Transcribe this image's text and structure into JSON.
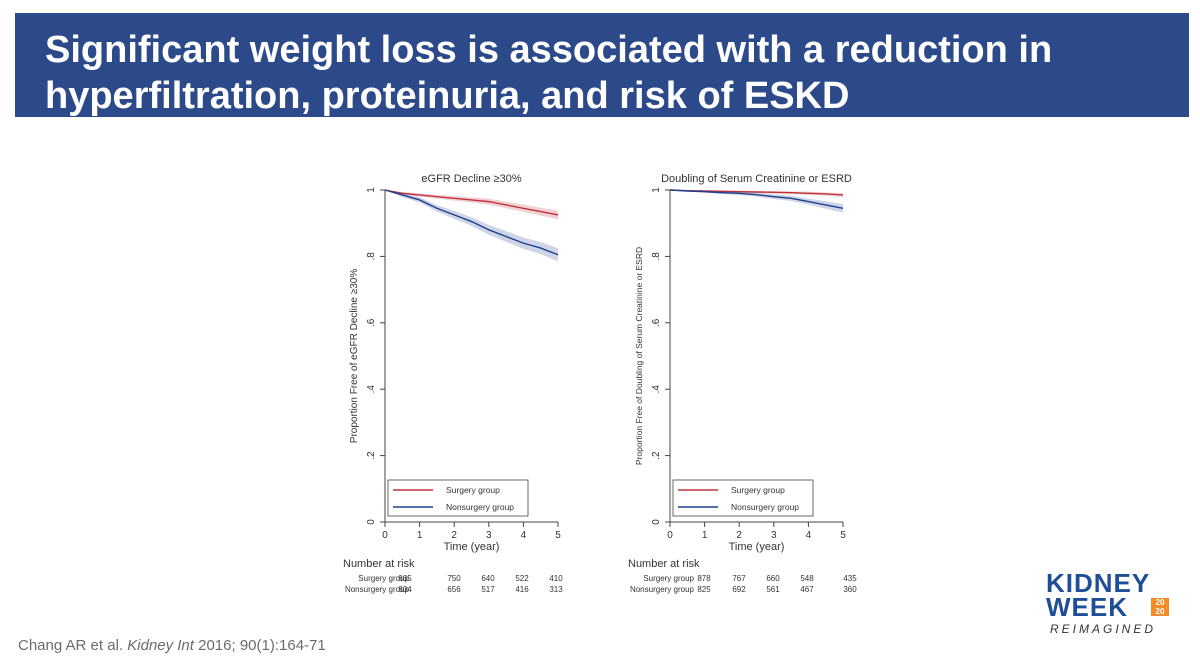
{
  "slide": {
    "title": "Significant weight loss is associated with a reduction in hyperfiltration, proteinuria, and risk of ESKD",
    "citation_authors": "Chang AR et al. ",
    "citation_journal": "Kidney Int",
    "citation_details": " 2016; 90(1):164-71",
    "logo": {
      "line1": "KIDNEY",
      "line2": "WEEK",
      "year_top": "20",
      "year_bottom": "20",
      "line3": "REIMAGINED"
    },
    "colors": {
      "title_bar": "#2c4a8a",
      "surgery": "#c0323c",
      "nonsurgery": "#1f3f8f"
    }
  },
  "chart_data": [
    {
      "type": "line",
      "title": "eGFR Decline ≥30%",
      "xlabel": "Time (year)",
      "ylabel": "Proportion Free of eGFR Decline ≥30%",
      "xlim": [
        0,
        5
      ],
      "ylim": [
        0,
        1
      ],
      "x_ticks": [
        "0",
        "1",
        "2",
        "3",
        "4",
        "5"
      ],
      "y_ticks": [
        "0",
        ".2",
        ".4",
        ".6",
        ".8",
        "1"
      ],
      "grid": false,
      "legend_position": "bottom-left",
      "series": [
        {
          "name": "Surgery group",
          "color": "#c0323c",
          "x": [
            0,
            0.5,
            1,
            1.5,
            2,
            2.5,
            3,
            3.5,
            4,
            4.5,
            5
          ],
          "y": [
            1.0,
            0.99,
            0.985,
            0.98,
            0.975,
            0.97,
            0.965,
            0.955,
            0.945,
            0.935,
            0.925
          ],
          "ci_half": [
            0,
            0.004,
            0.005,
            0.006,
            0.007,
            0.008,
            0.009,
            0.01,
            0.011,
            0.012,
            0.013
          ]
        },
        {
          "name": "Nonsurgery group",
          "color": "#1f3f8f",
          "x": [
            0,
            0.5,
            1,
            1.5,
            2,
            2.5,
            3,
            3.5,
            4,
            4.5,
            5
          ],
          "y": [
            1.0,
            0.985,
            0.97,
            0.945,
            0.925,
            0.905,
            0.88,
            0.86,
            0.84,
            0.825,
            0.805
          ],
          "ci_half": [
            0,
            0.006,
            0.008,
            0.01,
            0.012,
            0.013,
            0.015,
            0.016,
            0.017,
            0.018,
            0.02
          ]
        }
      ],
      "risk_table": {
        "header": "Number at risk",
        "rows": [
          {
            "label": "Surgery group",
            "values": [
              "865",
              "750",
              "640",
              "522",
              "410"
            ]
          },
          {
            "label": "Nonsurgery group",
            "values": [
              "804",
              "656",
              "517",
              "416",
              "313"
            ]
          }
        ]
      }
    },
    {
      "type": "line",
      "title": "Doubling of Serum Creatinine or ESRD",
      "xlabel": "Time (year)",
      "ylabel": "Proportion Free of Doubling of Serum Creatinine or ESRD",
      "xlim": [
        0,
        5
      ],
      "ylim": [
        0,
        1
      ],
      "x_ticks": [
        "0",
        "1",
        "2",
        "3",
        "4",
        "5"
      ],
      "y_ticks": [
        "0",
        ".2",
        ".4",
        ".6",
        ".8",
        "1"
      ],
      "grid": false,
      "legend_position": "bottom-left",
      "series": [
        {
          "name": "Surgery group",
          "color": "#c0323c",
          "x": [
            0,
            0.5,
            1,
            1.5,
            2,
            2.5,
            3,
            3.5,
            4,
            4.5,
            5
          ],
          "y": [
            1.0,
            0.998,
            0.997,
            0.996,
            0.995,
            0.994,
            0.993,
            0.992,
            0.99,
            0.988,
            0.985
          ],
          "ci_half": [
            0,
            0.002,
            0.002,
            0.003,
            0.003,
            0.003,
            0.004,
            0.004,
            0.005,
            0.005,
            0.006
          ]
        },
        {
          "name": "Nonsurgery group",
          "color": "#1f3f8f",
          "x": [
            0,
            0.5,
            1,
            1.5,
            2,
            2.5,
            3,
            3.5,
            4,
            4.5,
            5
          ],
          "y": [
            1.0,
            0.997,
            0.995,
            0.992,
            0.99,
            0.986,
            0.98,
            0.975,
            0.965,
            0.955,
            0.945
          ],
          "ci_half": [
            0,
            0.002,
            0.003,
            0.004,
            0.005,
            0.006,
            0.007,
            0.008,
            0.009,
            0.011,
            0.013
          ]
        }
      ],
      "risk_table": {
        "header": "Number at risk",
        "rows": [
          {
            "label": "Surgery group",
            "values": [
              "878",
              "767",
              "660",
              "548",
              "435"
            ]
          },
          {
            "label": "Nonsurgery group",
            "values": [
              "825",
              "692",
              "561",
              "467",
              "360"
            ]
          }
        ]
      }
    }
  ]
}
